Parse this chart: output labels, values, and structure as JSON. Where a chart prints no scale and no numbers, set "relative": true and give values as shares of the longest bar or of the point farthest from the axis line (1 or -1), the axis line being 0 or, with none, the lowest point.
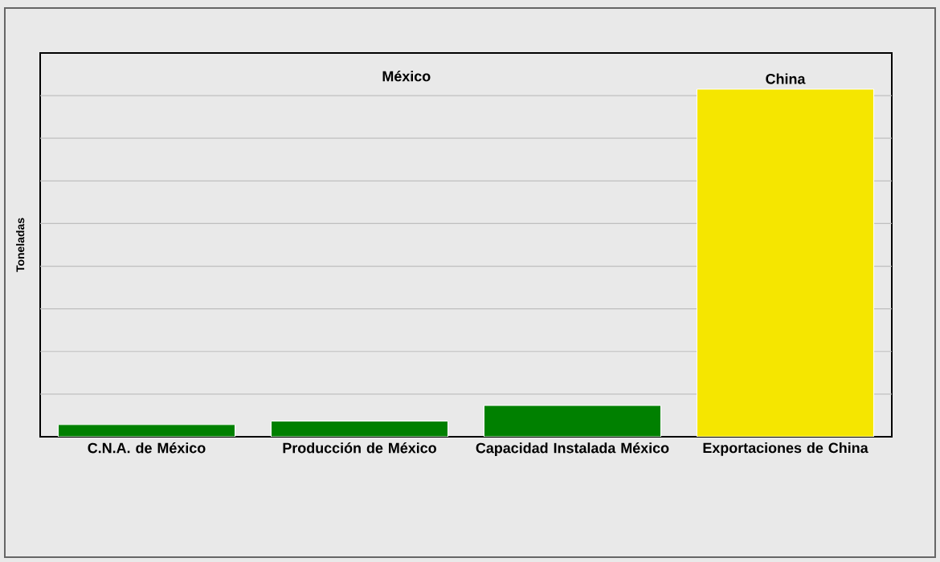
{
  "chart_data": {
    "type": "bar",
    "relative": true,
    "ylabel": "Toneladas",
    "categories": [
      "C.N.A. de México",
      "Producción de México",
      "Capacidad Instalada México",
      "Exportaciones de China"
    ],
    "values": [
      0.035,
      0.045,
      0.09,
      1
    ],
    "colors": [
      "#008000",
      "#008000",
      "#008000",
      "#f5e600"
    ],
    "annotations": [
      "México",
      {
        "text": "China",
        "x": "Exportaciones de China",
        "y": 1
      }
    ],
    "grid": "y"
  }
}
